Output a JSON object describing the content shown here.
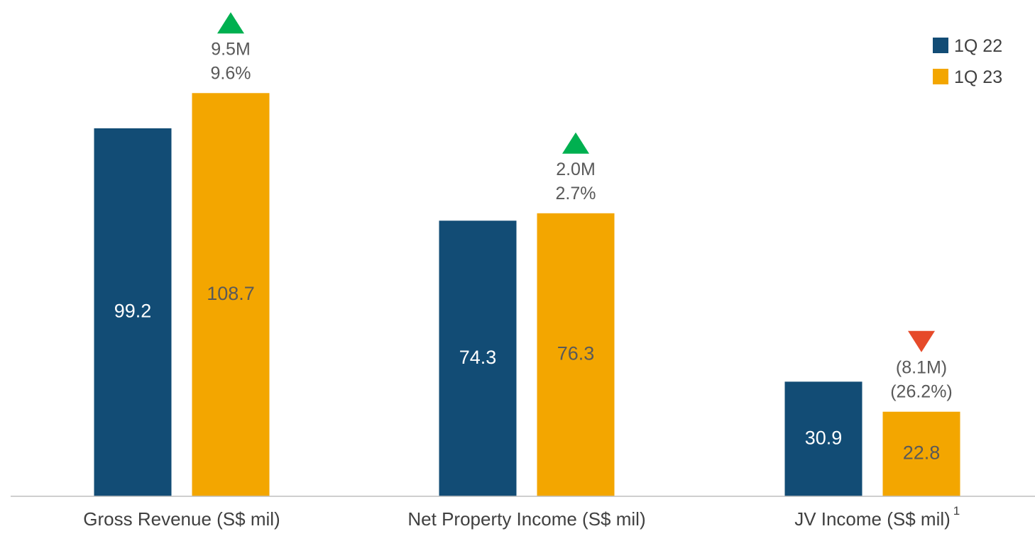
{
  "chart_data": {
    "type": "bar",
    "title": "",
    "xlabel": "",
    "ylabel": "",
    "categories": [
      "Gross Revenue (S$ mil)",
      "Net Property Income (S$ mil)",
      "JV Income (S$ mil)"
    ],
    "category_footnotes": [
      "",
      "",
      "1"
    ],
    "series": [
      {
        "name": "1Q 22",
        "color": "#124C75",
        "label_color": "#ffffff",
        "values": [
          99.2,
          74.3,
          30.9
        ],
        "labels": [
          "99.2",
          "74.3",
          "30.9"
        ]
      },
      {
        "name": "1Q 23",
        "color": "#F3A600",
        "label_color": "#595959",
        "values": [
          108.7,
          76.3,
          22.8
        ],
        "labels": [
          "108.7",
          "76.3",
          "22.8"
        ]
      }
    ],
    "changes": [
      {
        "direction": "up",
        "amount": "9.5M",
        "percent": "9.6%",
        "icon": "up-triangle-icon",
        "color": "#00B050"
      },
      {
        "direction": "up",
        "amount": "2.0M",
        "percent": "2.7%",
        "icon": "up-triangle-icon",
        "color": "#00B050"
      },
      {
        "direction": "down",
        "amount": "(8.1M)",
        "percent": "(26.2%)",
        "icon": "down-triangle-icon",
        "color": "#E64A2A"
      }
    ],
    "ylim": [
      0,
      125
    ],
    "grid": false,
    "legend_position": "top-right",
    "axis_color": "#BFBFBF"
  }
}
